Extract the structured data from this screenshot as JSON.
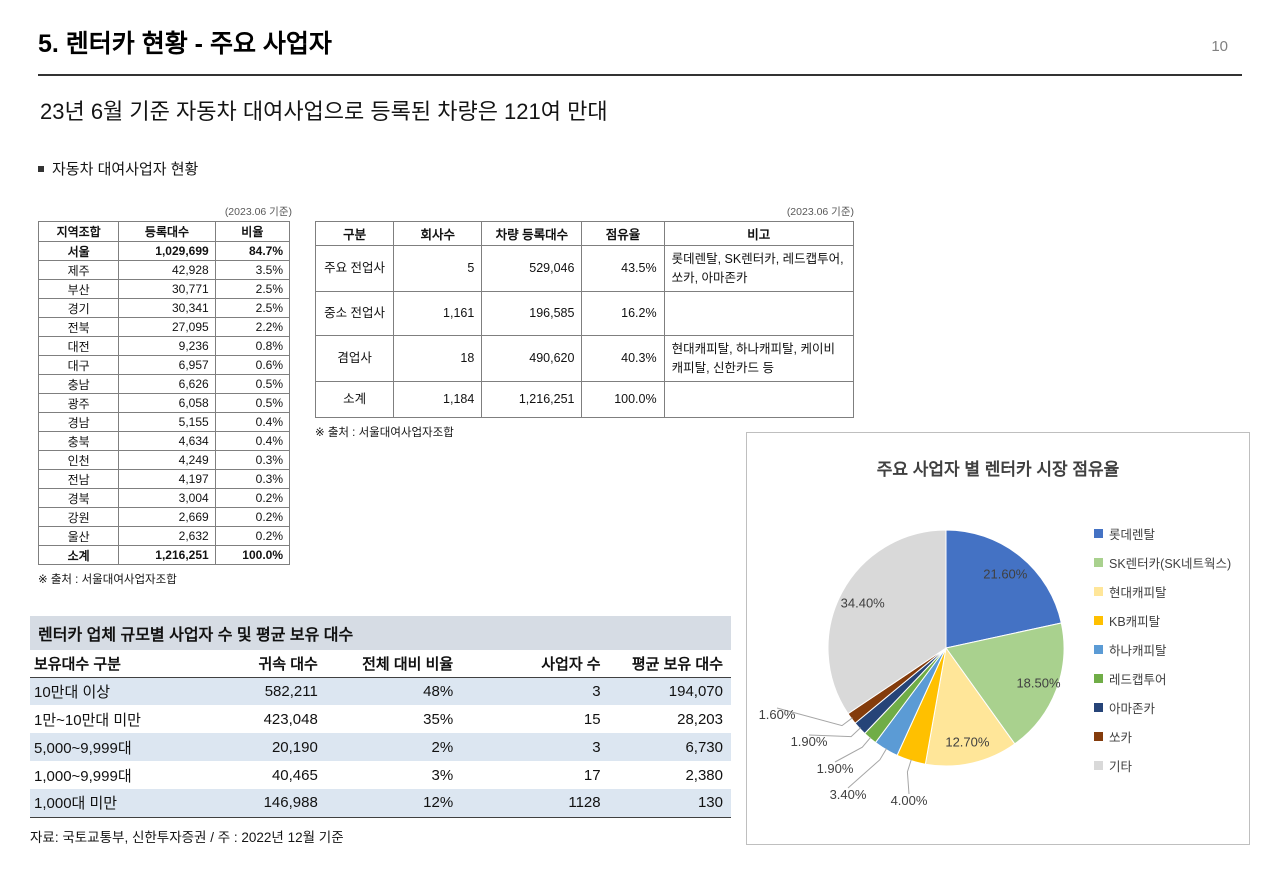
{
  "page": {
    "title": "5. 렌터카 현황 - 주요 사업자",
    "page_number": "10",
    "subtitle": "23년 6월 기준 자동차 대여사업으로 등록된 차량은 121여 만대",
    "bullet": "자동차 대여사업자 현황"
  },
  "region_table": {
    "note": "(2023.06 기준)",
    "headers": [
      "지역조합",
      "등록대수",
      "비율"
    ],
    "rows": [
      [
        "서울",
        "1,029,699",
        "84.7%"
      ],
      [
        "제주",
        "42,928",
        "3.5%"
      ],
      [
        "부산",
        "30,771",
        "2.5%"
      ],
      [
        "경기",
        "30,341",
        "2.5%"
      ],
      [
        "전북",
        "27,095",
        "2.2%"
      ],
      [
        "대전",
        "9,236",
        "0.8%"
      ],
      [
        "대구",
        "6,957",
        "0.6%"
      ],
      [
        "충남",
        "6,626",
        "0.5%"
      ],
      [
        "광주",
        "6,058",
        "0.5%"
      ],
      [
        "경남",
        "5,155",
        "0.4%"
      ],
      [
        "충북",
        "4,634",
        "0.4%"
      ],
      [
        "인천",
        "4,249",
        "0.3%"
      ],
      [
        "전남",
        "4,197",
        "0.3%"
      ],
      [
        "경북",
        "3,004",
        "0.2%"
      ],
      [
        "강원",
        "2,669",
        "0.2%"
      ],
      [
        "울산",
        "2,632",
        "0.2%"
      ],
      [
        "소계",
        "1,216,251",
        "100.0%"
      ]
    ],
    "source": "※ 출처 : 서울대여사업자조합"
  },
  "biz_table": {
    "note": "(2023.06 기준)",
    "headers": [
      "구분",
      "회사수",
      "차량 등록대수",
      "점유율",
      "비고"
    ],
    "rows": [
      [
        "주요 전업사",
        "5",
        "529,046",
        "43.5%",
        "롯데렌탈, SK렌터카, 레드캡투어, 쏘카, 아마존카"
      ],
      [
        "중소 전업사",
        "1,161",
        "196,585",
        "16.2%",
        ""
      ],
      [
        "겸업사",
        "18",
        "490,620",
        "40.3%",
        "현대캐피탈, 하나캐피탈, 케이비캐피탈, 신한카드 등"
      ],
      [
        "소계",
        "1,184",
        "1,216,251",
        "100.0%",
        ""
      ]
    ],
    "source": "※ 출처 : 서울대여사업자조합"
  },
  "size_table": {
    "title": "렌터카 업체 규모별 사업자 수 및 평균 보유 대수",
    "headers": [
      "보유대수 구분",
      "귀속 대수",
      "전체 대비 비율",
      "사업자 수",
      "평균 보유 대수"
    ],
    "rows": [
      [
        "10만대 이상",
        "582,211",
        "48%",
        "3",
        "194,070"
      ],
      [
        "1만~10만대 미만",
        "423,048",
        "35%",
        "15",
        "28,203"
      ],
      [
        "5,000~9,999대",
        "20,190",
        "2%",
        "3",
        "6,730"
      ],
      [
        "1,000~9,999대",
        "40,465",
        "3%",
        "17",
        "2,380"
      ],
      [
        "1,000대 미만",
        "146,988",
        "12%",
        "1128",
        "130"
      ]
    ],
    "footnote": "자료: 국토교통부, 신한투자증권 / 주 : 2022년 12월 기준",
    "band_color": "#dce6f1",
    "title_bar_color": "#d6dce4"
  },
  "chart_data": {
    "type": "pie",
    "title": "주요 사업자 별 렌터카 시장 점유율",
    "legend_position": "right",
    "labels": [
      "롯데렌탈",
      "SK렌터카(SK네트웍스)",
      "현대캐피탈",
      "KB캐피탈",
      "하나캐피탈",
      "레드캡투어",
      "아마존카",
      "쏘카",
      "기타"
    ],
    "values": [
      21.6,
      18.5,
      12.7,
      4.0,
      3.4,
      1.9,
      1.9,
      1.6,
      34.4
    ],
    "value_labels": [
      "21.60%",
      "18.50%",
      "12.70%",
      "4.00%",
      "3.40%",
      "1.90%",
      "1.90%",
      "1.60%",
      "34.40%"
    ],
    "colors": [
      "#4472c4",
      "#a9d18e",
      "#ffe699",
      "#ffc000",
      "#5b9bd5",
      "#70ad47",
      "#264478",
      "#843c0c",
      "#d9d9d9"
    ]
  }
}
